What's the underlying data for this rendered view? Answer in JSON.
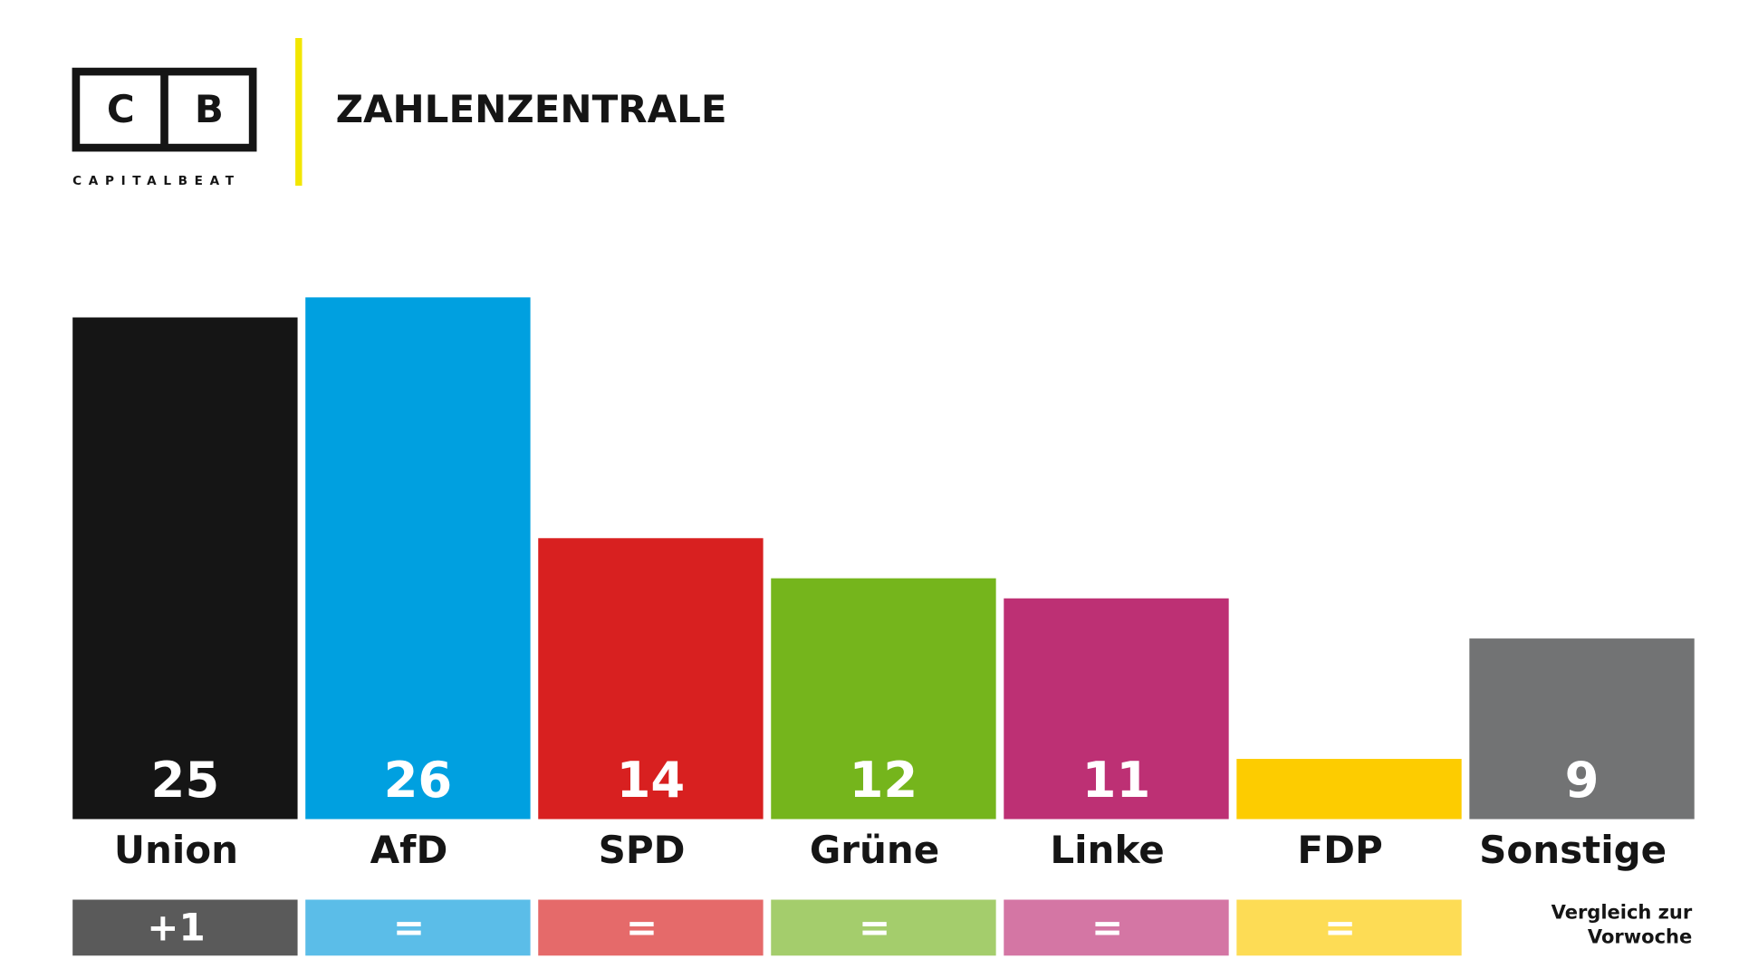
{
  "header": {
    "logo_left": "C",
    "logo_right": "B",
    "brand": "CAPITALBEAT",
    "title": "ZAHLENZENTRALE"
  },
  "chart_data": {
    "type": "bar",
    "categories": [
      "Union",
      "AfD",
      "SPD",
      "Grüne",
      "Linke",
      "FDP",
      "Sonstige"
    ],
    "values": [
      25,
      26,
      14,
      12,
      11,
      3,
      9
    ],
    "value_labels": [
      "25",
      "26",
      "14",
      "12",
      "11",
      null,
      "9"
    ],
    "colors": [
      "#151515",
      "#00a0e0",
      "#d82020",
      "#75b51c",
      "#bd3074",
      "#fdcc00",
      "#727374"
    ],
    "ylim": [
      0,
      30
    ],
    "changes": [
      "+1",
      "=",
      "=",
      "=",
      "=",
      "=",
      null
    ],
    "change_colors": [
      "#5a5a5a",
      "#5bbde8",
      "#e56a6a",
      "#a4cd6c",
      "#d476a4",
      "#fddc55",
      null
    ],
    "change_note": [
      "Vergleich zur",
      "Vorwoche"
    ]
  }
}
